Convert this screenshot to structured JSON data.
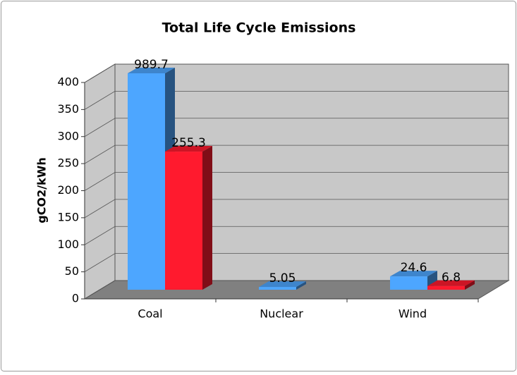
{
  "chart_data": {
    "type": "bar3d",
    "title": "Total Life Cycle Emissions",
    "y_label": "gCO2/kWh",
    "categories": [
      "Coal",
      "Nuclear",
      "Wind"
    ],
    "series": [
      {
        "color": "#4da6ff",
        "values": [
          989.7,
          5.05,
          24.6
        ]
      },
      {
        "color": "#ff1a2e",
        "values": [
          255.3,
          null,
          6.8
        ]
      }
    ],
    "ylim": [
      0,
      400
    ],
    "yticks": [
      0,
      50,
      100,
      150,
      200,
      250,
      300,
      350,
      400
    ],
    "grid": true
  }
}
